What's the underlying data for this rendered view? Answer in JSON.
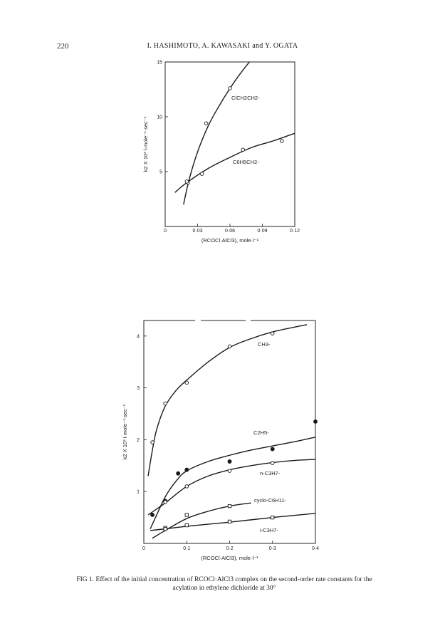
{
  "header": {
    "page_number": "220",
    "running_head": "I. HASHIMOTO, A. KAWASAKI and Y. OGATA"
  },
  "caption": "FIG 1. Effect of the initial concentration of RCOCl·AlCl3 complex on the second-order rate constants for the acylation in ethylene dichloride at 30°",
  "chart_data": [
    {
      "type": "scatter",
      "xlabel": "(RCOCl·AlCl3), mole·l⁻¹",
      "ylabel": "k2 X 10³ l·mole⁻¹·sec⁻¹",
      "xlim": [
        0,
        0.12
      ],
      "ylim": [
        0,
        15
      ],
      "x_ticks": [
        "0",
        "0·03",
        "0·06",
        "0·09",
        "0·12"
      ],
      "y_ticks": [
        "5",
        "10",
        "15"
      ],
      "series": [
        {
          "name": "ClCH2CH2-",
          "points": [
            [
              0.021,
              4.0
            ],
            [
              0.038,
              9.4
            ],
            [
              0.06,
              12.6
            ]
          ],
          "curve": [
            [
              0.017,
              2.0
            ],
            [
              0.022,
              4.2
            ],
            [
              0.03,
              6.8
            ],
            [
              0.04,
              9.2
            ],
            [
              0.05,
              11.0
            ],
            [
              0.06,
              12.6
            ],
            [
              0.07,
              14.0
            ],
            [
              0.078,
              15.0
            ]
          ]
        },
        {
          "name": "C6H5CH2-",
          "points": [
            [
              0.02,
              4.1
            ],
            [
              0.034,
              4.8
            ],
            [
              0.072,
              7.0
            ],
            [
              0.108,
              7.8
            ]
          ],
          "curve": [
            [
              0.009,
              3.1
            ],
            [
              0.02,
              4.0
            ],
            [
              0.04,
              5.3
            ],
            [
              0.06,
              6.3
            ],
            [
              0.08,
              7.2
            ],
            [
              0.1,
              7.8
            ],
            [
              0.12,
              8.5
            ]
          ]
        }
      ]
    },
    {
      "type": "scatter",
      "xlabel": "(RCOCl·AlCl3), mole·l⁻¹",
      "ylabel": "k2 X 10³ l·mole⁻¹·sec⁻¹",
      "xlim": [
        0,
        0.4
      ],
      "ylim": [
        0,
        4.3
      ],
      "x_ticks": [
        "0",
        "0·1",
        "0·2",
        "0·3",
        "0·4"
      ],
      "y_ticks": [
        "1",
        "2",
        "3",
        "4"
      ],
      "series": [
        {
          "name": "CH3-",
          "points": [
            [
              0.02,
              1.95
            ],
            [
              0.05,
              2.7
            ],
            [
              0.1,
              3.1
            ],
            [
              0.2,
              3.8
            ],
            [
              0.3,
              4.05
            ]
          ],
          "curve": [
            [
              0.01,
              1.3
            ],
            [
              0.02,
              1.8
            ],
            [
              0.03,
              2.2
            ],
            [
              0.05,
              2.65
            ],
            [
              0.075,
              2.95
            ],
            [
              0.1,
              3.15
            ],
            [
              0.15,
              3.5
            ],
            [
              0.2,
              3.78
            ],
            [
              0.25,
              3.95
            ],
            [
              0.3,
              4.08
            ],
            [
              0.35,
              4.17
            ],
            [
              0.38,
              4.22
            ]
          ]
        },
        {
          "name": "C2H5-",
          "points": [
            [
              0.02,
              0.55
            ],
            [
              0.05,
              0.82
            ],
            [
              0.08,
              1.35
            ],
            [
              0.1,
              1.42
            ],
            [
              0.2,
              1.58
            ],
            [
              0.3,
              1.82
            ],
            [
              0.4,
              2.35
            ]
          ],
          "curve": [
            [
              0.015,
              0.28
            ],
            [
              0.03,
              0.55
            ],
            [
              0.05,
              0.9
            ],
            [
              0.075,
              1.2
            ],
            [
              0.1,
              1.4
            ],
            [
              0.15,
              1.58
            ],
            [
              0.2,
              1.7
            ],
            [
              0.25,
              1.8
            ],
            [
              0.3,
              1.88
            ],
            [
              0.35,
              1.96
            ],
            [
              0.4,
              2.05
            ]
          ]
        },
        {
          "name": "n-C3H7-",
          "points": [
            [
              0.05,
              0.8
            ],
            [
              0.1,
              1.1
            ],
            [
              0.2,
              1.4
            ],
            [
              0.3,
              1.55
            ]
          ],
          "curve": [
            [
              0.01,
              0.55
            ],
            [
              0.05,
              0.78
            ],
            [
              0.1,
              1.1
            ],
            [
              0.15,
              1.3
            ],
            [
              0.2,
              1.42
            ],
            [
              0.25,
              1.5
            ],
            [
              0.3,
              1.56
            ],
            [
              0.35,
              1.6
            ],
            [
              0.4,
              1.62
            ]
          ]
        },
        {
          "name": "cyclo-C6H11-",
          "points": [
            [
              0.05,
              0.3
            ],
            [
              0.1,
              0.55
            ],
            [
              0.2,
              0.72
            ]
          ],
          "curve": [
            [
              0.02,
              0.1
            ],
            [
              0.05,
              0.25
            ],
            [
              0.1,
              0.48
            ],
            [
              0.15,
              0.62
            ],
            [
              0.2,
              0.72
            ],
            [
              0.25,
              0.78
            ]
          ]
        },
        {
          "name": "i-C3H7-",
          "points": [
            [
              0.05,
              0.28
            ],
            [
              0.1,
              0.35
            ],
            [
              0.2,
              0.42
            ],
            [
              0.3,
              0.5
            ]
          ],
          "curve": [
            [
              0.015,
              0.25
            ],
            [
              0.05,
              0.28
            ],
            [
              0.1,
              0.33
            ],
            [
              0.2,
              0.41
            ],
            [
              0.3,
              0.5
            ],
            [
              0.4,
              0.58
            ]
          ]
        }
      ]
    }
  ]
}
